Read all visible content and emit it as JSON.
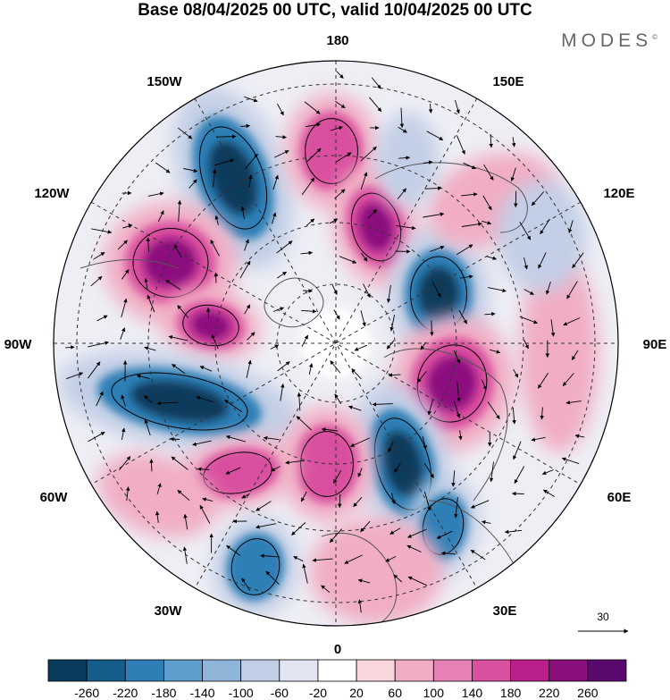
{
  "title": "Base 08/04/2025 00 UTC, valid 10/04/2025 00 UTC",
  "brand": "MODES",
  "brand_mark": "©",
  "longitude_labels": {
    "top": "180",
    "top_left": "150W",
    "top_right": "150E",
    "upper_left": "120W",
    "upper_right": "120E",
    "left": "90W",
    "right": "90E",
    "lower_left": "60W",
    "lower_right": "60E",
    "bottom_left": "30W",
    "bottom_right": "30E",
    "bottom": "0"
  },
  "reference_vector": {
    "value": "30"
  },
  "colorbar": {
    "levels": [
      "-260",
      "-220",
      "-180",
      "-140",
      "-100",
      "-60",
      "-20",
      "20",
      "60",
      "100",
      "140",
      "180",
      "220",
      "260"
    ],
    "colors": [
      "#0b3b5c",
      "#155e8c",
      "#2f7fb6",
      "#5d9ecc",
      "#8fb6d8",
      "#c3cfe6",
      "#e3e4f1",
      "#ffffff",
      "#f8d6dc",
      "#f1adc4",
      "#e681b5",
      "#d9509f",
      "#bb1f8c",
      "#8c0f7e",
      "#5a0a6e"
    ]
  },
  "field_colors": {
    "positive_strong": "#8c0f7e",
    "positive_mid": "#d9509f",
    "positive_weak": "#f1adc4",
    "negative_strong": "#0b3b5c",
    "negative_mid": "#2f7fb6",
    "negative_weak": "#c3cfe6",
    "land_outline": "#555555"
  }
}
